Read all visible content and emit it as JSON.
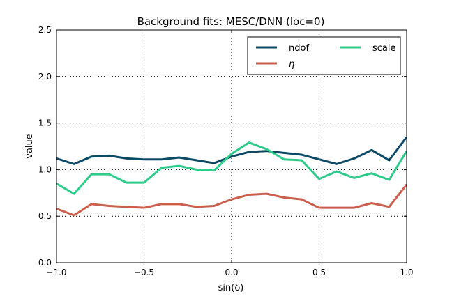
{
  "chart_data": {
    "type": "line",
    "title": "Background fits: MESC/DNN (loc=0)",
    "xlabel": "sin(δ)",
    "ylabel": "value",
    "xlim": [
      -1.0,
      1.0
    ],
    "ylim": [
      0.0,
      2.5
    ],
    "grid": true,
    "legend_position": "top-right",
    "x_ticks": [
      -1.0,
      -0.5,
      0.0,
      0.5,
      1.0
    ],
    "x_tick_labels": [
      "−1.0",
      "−0.5",
      "0.0",
      "0.5",
      "1.0"
    ],
    "y_ticks": [
      0.0,
      0.5,
      1.0,
      1.5,
      2.0,
      2.5
    ],
    "y_tick_labels": [
      "0.0",
      "0.5",
      "1.0",
      "1.5",
      "2.0",
      "2.5"
    ],
    "x": [
      -1.0,
      -0.9,
      -0.8,
      -0.7,
      -0.6,
      -0.5,
      -0.4,
      -0.3,
      -0.2,
      -0.1,
      0.0,
      0.1,
      0.2,
      0.3,
      0.4,
      0.5,
      0.6,
      0.7,
      0.8,
      0.9,
      1.0
    ],
    "series": [
      {
        "name": "ndof",
        "color": "#0b4a66",
        "values": [
          1.12,
          1.06,
          1.14,
          1.15,
          1.12,
          1.11,
          1.11,
          1.13,
          1.1,
          1.07,
          1.14,
          1.19,
          1.2,
          1.18,
          1.16,
          1.11,
          1.06,
          1.12,
          1.21,
          1.1,
          1.35
        ]
      },
      {
        "name": "η",
        "color": "#cc5f4c",
        "values": [
          0.58,
          0.51,
          0.63,
          0.61,
          0.6,
          0.59,
          0.63,
          0.63,
          0.6,
          0.61,
          0.68,
          0.73,
          0.74,
          0.7,
          0.68,
          0.59,
          0.59,
          0.59,
          0.64,
          0.6,
          0.84
        ]
      },
      {
        "name": "scale",
        "color": "#2ecc8a",
        "values": [
          0.85,
          0.74,
          0.95,
          0.95,
          0.86,
          0.86,
          1.02,
          1.04,
          1.0,
          0.99,
          1.17,
          1.29,
          1.22,
          1.11,
          1.1,
          0.9,
          0.98,
          0.91,
          0.96,
          0.89,
          1.2
        ]
      }
    ]
  }
}
